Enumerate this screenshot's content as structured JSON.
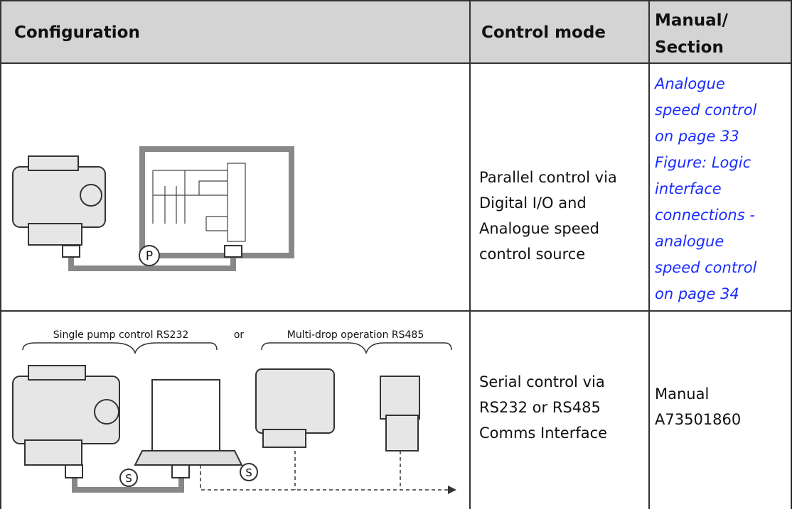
{
  "table": {
    "header": [
      "Configuration",
      "Control mode",
      "Manual/\nSection"
    ],
    "rows": [
      {
        "diagram": {
          "cable_label": "P"
        },
        "control_mode": "Parallel control via\nDigital I/O and\nAnalogue speed\ncontrol source",
        "references": [
          "Analogue\nspeed control\non page 33",
          "Figure: Logic\ninterface\nconnections -\nanalogue\nspeed control\non page 34"
        ]
      },
      {
        "diagram": {
          "left_label": "Single pump control RS232",
          "or": "or",
          "right_label": "Multi-drop operation RS485",
          "cable_label": "S",
          "bus_label": "S"
        },
        "control_mode": "Serial control via\nRS232 or RS485\nComms Interface",
        "reference": "Manual\nA73501860"
      }
    ]
  }
}
